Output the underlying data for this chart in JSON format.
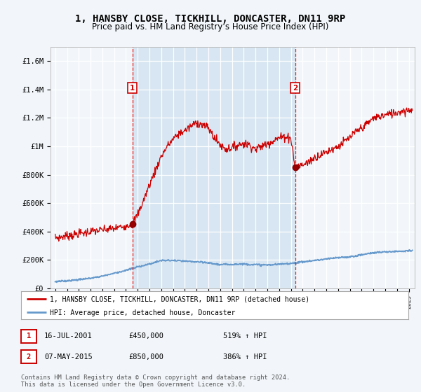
{
  "title": "1, HANSBY CLOSE, TICKHILL, DONCASTER, DN11 9RP",
  "subtitle": "Price paid vs. HM Land Registry’s House Price Index (HPI)",
  "title_fontsize": 10,
  "subtitle_fontsize": 8.5,
  "background_color": "#f0f4f8",
  "plot_bg_color": "#f0f4f8",
  "shade_color": "#cfe0f0",
  "legend_label_red": "1, HANSBY CLOSE, TICKHILL, DONCASTER, DN11 9RP (detached house)",
  "legend_label_blue": "HPI: Average price, detached house, Doncaster",
  "sale1_date_num": 2001.54,
  "sale1_price": 450000,
  "sale1_label": "16-JUL-2001",
  "sale1_hpi_pct": "519% ↑ HPI",
  "sale2_date_num": 2015.35,
  "sale2_price": 850000,
  "sale2_label": "07-MAY-2015",
  "sale2_hpi_pct": "386% ↑ HPI",
  "footer1": "Contains HM Land Registry data © Crown copyright and database right 2024.",
  "footer2": "This data is licensed under the Open Government Licence v3.0.",
  "ylim_max": 1700000,
  "xmin": 1994.6,
  "xmax": 2025.5,
  "red_x": [
    1995.0,
    1995.5,
    1996.0,
    1996.5,
    1997.0,
    1997.5,
    1998.0,
    1998.5,
    1999.0,
    1999.5,
    2000.0,
    2000.5,
    2001.0,
    2001.54,
    2002.0,
    2002.5,
    2003.0,
    2003.5,
    2004.0,
    2004.5,
    2005.0,
    2005.5,
    2006.0,
    2006.5,
    2007.0,
    2007.5,
    2008.0,
    2008.5,
    2009.0,
    2009.5,
    2010.0,
    2010.5,
    2011.0,
    2011.5,
    2012.0,
    2012.5,
    2013.0,
    2013.5,
    2014.0,
    2014.5,
    2015.0,
    2015.35,
    2016.0,
    2016.5,
    2017.0,
    2017.5,
    2018.0,
    2018.5,
    2019.0,
    2019.5,
    2020.0,
    2020.5,
    2021.0,
    2021.5,
    2022.0,
    2022.5,
    2023.0,
    2023.5,
    2024.0,
    2024.5,
    2025.3
  ],
  "red_y": [
    355000,
    360000,
    370000,
    375000,
    385000,
    390000,
    400000,
    405000,
    410000,
    415000,
    420000,
    430000,
    440000,
    450000,
    520000,
    620000,
    730000,
    830000,
    930000,
    1000000,
    1050000,
    1090000,
    1110000,
    1140000,
    1170000,
    1150000,
    1130000,
    1060000,
    1010000,
    980000,
    990000,
    1010000,
    1020000,
    1010000,
    980000,
    1000000,
    1020000,
    1040000,
    1060000,
    1070000,
    1060000,
    850000,
    870000,
    890000,
    920000,
    940000,
    960000,
    980000,
    1000000,
    1030000,
    1060000,
    1100000,
    1130000,
    1160000,
    1200000,
    1210000,
    1220000,
    1230000,
    1240000,
    1250000,
    1260000
  ],
  "hpi_x": [
    1995.0,
    1996.0,
    1997.0,
    1998.0,
    1999.0,
    2000.0,
    2001.0,
    2002.0,
    2003.0,
    2004.0,
    2005.0,
    2006.0,
    2007.0,
    2008.0,
    2009.0,
    2010.0,
    2011.0,
    2012.0,
    2013.0,
    2014.0,
    2015.0,
    2016.0,
    2017.0,
    2018.0,
    2019.0,
    2020.0,
    2021.0,
    2022.0,
    2023.0,
    2024.0,
    2025.3
  ],
  "hpi_y": [
    45000,
    52000,
    60000,
    70000,
    85000,
    105000,
    125000,
    150000,
    170000,
    195000,
    195000,
    190000,
    185000,
    178000,
    165000,
    168000,
    170000,
    165000,
    163000,
    168000,
    175000,
    185000,
    195000,
    205000,
    215000,
    220000,
    235000,
    250000,
    255000,
    260000,
    265000
  ]
}
